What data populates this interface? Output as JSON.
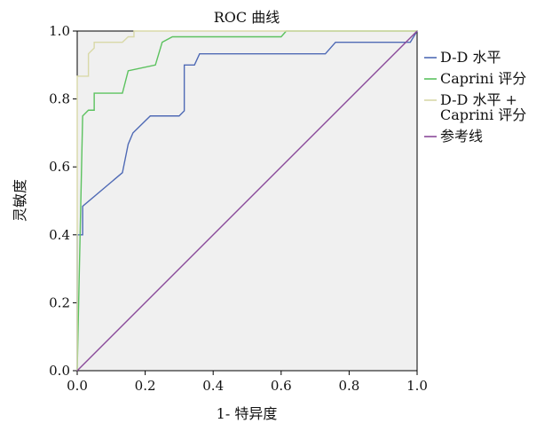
{
  "chart_data": {
    "type": "line",
    "title": "ROC 曲线",
    "xlabel": "1- 特异度",
    "ylabel": "灵敏度",
    "xlim": [
      0,
      1
    ],
    "ylim": [
      0,
      1
    ],
    "x_ticks": [
      "0.0",
      "0.2",
      "0.4",
      "0.6",
      "0.8",
      "1.0"
    ],
    "y_ticks": [
      "0.0",
      "0.2",
      "0.4",
      "0.6",
      "0.8",
      "1.0"
    ],
    "grid": false,
    "legend_position": "right",
    "series": [
      {
        "name": "D-D 水平",
        "color": "#4f6ab5",
        "points": [
          [
            0,
            0
          ],
          [
            0,
            0.4
          ],
          [
            0.016,
            0.4
          ],
          [
            0.016,
            0.484
          ],
          [
            0.133,
            0.583
          ],
          [
            0.15,
            0.667
          ],
          [
            0.164,
            0.7
          ],
          [
            0.215,
            0.75
          ],
          [
            0.3,
            0.75
          ],
          [
            0.315,
            0.765
          ],
          [
            0.315,
            0.9
          ],
          [
            0.345,
            0.9
          ],
          [
            0.36,
            0.933
          ],
          [
            0.73,
            0.933
          ],
          [
            0.76,
            0.967
          ],
          [
            0.98,
            0.967
          ],
          [
            1,
            1
          ]
        ]
      },
      {
        "name": "Caprini 评分",
        "color": "#5cc25f",
        "points": [
          [
            0,
            0
          ],
          [
            0.016,
            0.75
          ],
          [
            0.033,
            0.767
          ],
          [
            0.05,
            0.767
          ],
          [
            0.05,
            0.817
          ],
          [
            0.133,
            0.817
          ],
          [
            0.15,
            0.883
          ],
          [
            0.23,
            0.9
          ],
          [
            0.25,
            0.967
          ],
          [
            0.28,
            0.983
          ],
          [
            0.6,
            0.983
          ],
          [
            0.615,
            1.0
          ],
          [
            1,
            1
          ]
        ]
      },
      {
        "name": "D-D 水平 + Caprini 评分",
        "name_lines": [
          "D-D 水平 +",
          "Caprini 评分"
        ],
        "color": "#d9d9a8",
        "points": [
          [
            0,
            0
          ],
          [
            0,
            0.867
          ],
          [
            0.033,
            0.867
          ],
          [
            0.033,
            0.933
          ],
          [
            0.05,
            0.95
          ],
          [
            0.05,
            0.967
          ],
          [
            0.133,
            0.967
          ],
          [
            0.15,
            0.983
          ],
          [
            0.167,
            0.983
          ],
          [
            0.167,
            1.0
          ],
          [
            1,
            1
          ]
        ]
      },
      {
        "name": "参考线",
        "color": "#8a4a9a",
        "points": [
          [
            0,
            0
          ],
          [
            1,
            1
          ]
        ]
      }
    ]
  },
  "colors": {
    "plot_background": "#f0f0f0",
    "axis": "#000000"
  }
}
